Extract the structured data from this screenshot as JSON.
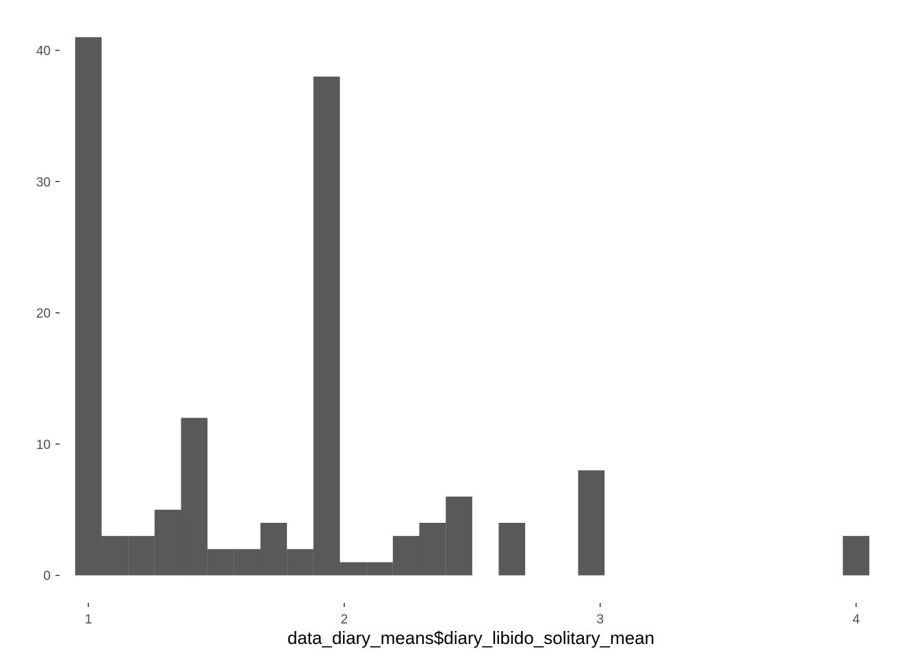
{
  "chart_data": {
    "type": "bar",
    "title": "",
    "xlabel": "data_diary_means$diary_libido_solitary_mean",
    "ylabel": "",
    "bin_width": 0.1034,
    "bins": [
      {
        "x0": 0.9483,
        "x1": 1.0517,
        "count": 41
      },
      {
        "x0": 1.0517,
        "x1": 1.1552,
        "count": 3
      },
      {
        "x0": 1.1552,
        "x1": 1.2586,
        "count": 3
      },
      {
        "x0": 1.2586,
        "x1": 1.3621,
        "count": 5
      },
      {
        "x0": 1.3621,
        "x1": 1.4655,
        "count": 12
      },
      {
        "x0": 1.4655,
        "x1": 1.569,
        "count": 2
      },
      {
        "x0": 1.569,
        "x1": 1.6724,
        "count": 2
      },
      {
        "x0": 1.6724,
        "x1": 1.7759,
        "count": 4
      },
      {
        "x0": 1.7759,
        "x1": 1.8793,
        "count": 2
      },
      {
        "x0": 1.8793,
        "x1": 1.9828,
        "count": 38
      },
      {
        "x0": 1.9828,
        "x1": 2.0862,
        "count": 1
      },
      {
        "x0": 2.0862,
        "x1": 2.1897,
        "count": 1
      },
      {
        "x0": 2.1897,
        "x1": 2.2931,
        "count": 3
      },
      {
        "x0": 2.2931,
        "x1": 2.3966,
        "count": 4
      },
      {
        "x0": 2.3966,
        "x1": 2.5,
        "count": 6
      },
      {
        "x0": 2.6034,
        "x1": 2.7069,
        "count": 4
      },
      {
        "x0": 2.9138,
        "x1": 3.0172,
        "count": 8
      },
      {
        "x0": 3.9483,
        "x1": 4.0517,
        "count": 3
      }
    ],
    "xlim": [
      0.89,
      4.1
    ],
    "ylim": [
      -2.05,
      43.05
    ],
    "x_ticks": [
      1,
      2,
      3,
      4
    ],
    "x_tick_labels": [
      "1",
      "2",
      "3",
      "4"
    ],
    "y_ticks": [
      0,
      10,
      20,
      30,
      40
    ],
    "y_tick_labels": [
      "0",
      "10",
      "20",
      "30",
      "40"
    ],
    "bar_color": "#595959",
    "tick_color": "#333333",
    "grid": false,
    "legend": "none"
  }
}
